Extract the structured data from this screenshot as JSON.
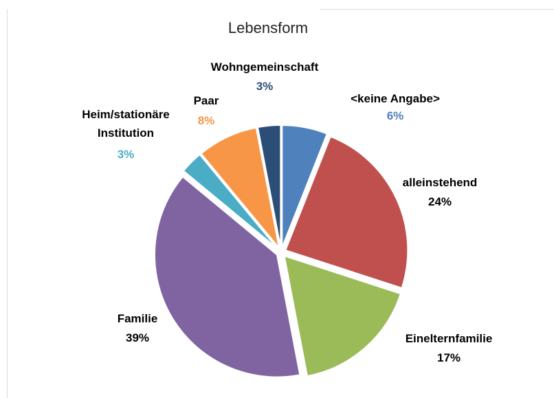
{
  "chart_data": {
    "type": "pie",
    "title": "Lebensform",
    "categories": [
      "<keine Angabe>",
      "alleinstehend",
      "Einelternfamilie",
      "Familie",
      "Heim/stationäre Institution",
      "Paar",
      "Wohngemeinschaft"
    ],
    "values": [
      6,
      24,
      17,
      39,
      3,
      8,
      3
    ],
    "value_labels": [
      "6%",
      "24%",
      "17%",
      "39%",
      "3%",
      "8%",
      "3%"
    ],
    "colors": [
      "#4f81bd",
      "#c0504d",
      "#9bbb59",
      "#8064a2",
      "#4bacc6",
      "#f79646",
      "#2c4d75"
    ]
  }
}
